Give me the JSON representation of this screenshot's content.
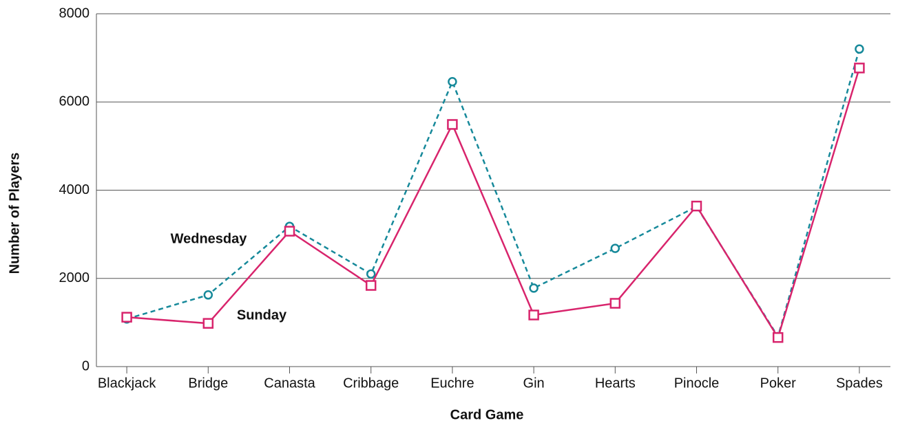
{
  "chart_data": {
    "type": "line",
    "x_label": "Card Game",
    "y_label": "Number of Players",
    "categories": [
      "Blackjack",
      "Bridge",
      "Canasta",
      "Cribbage",
      "Euchre",
      "Gin",
      "Hearts",
      "Pinocle",
      "Poker",
      "Spades"
    ],
    "series": [
      {
        "name": "Wednesday",
        "color": "#16899a",
        "dash": true,
        "marker": "circle",
        "values": [
          1080,
          1625,
          3180,
          2100,
          6460,
          1780,
          2680,
          3630,
          680,
          7200
        ]
      },
      {
        "name": "Sunday",
        "color": "#d8246c",
        "dash": false,
        "marker": "square",
        "values": [
          1120,
          980,
          3070,
          1840,
          5490,
          1170,
          1435,
          3640,
          660,
          6770
        ]
      }
    ],
    "ylim": [
      0,
      8000
    ],
    "yticks": [
      0,
      2000,
      4000,
      6000,
      8000
    ],
    "grid": true
  }
}
